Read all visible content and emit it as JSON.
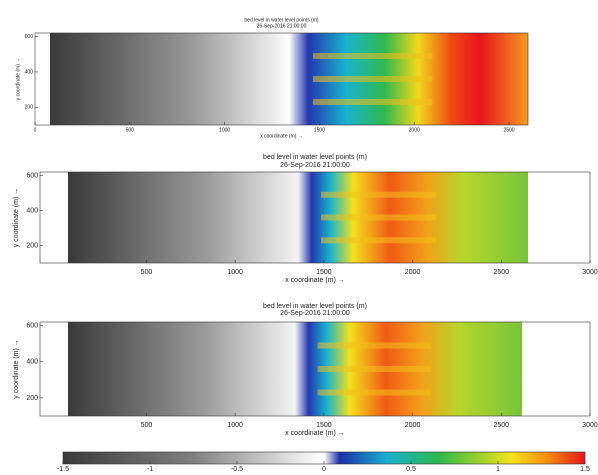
{
  "chart_data": [
    {
      "type": "heatmap",
      "title": "bed level in water level points (m)",
      "subtitle": "26-Sep-2016 21:00:00",
      "xlabel": "x coordinate (m) →",
      "ylabel": "y coordinate (m) →",
      "xlim": [
        0,
        2600
      ],
      "ylim": [
        100,
        620
      ],
      "xticks": [
        0,
        500,
        1000,
        1500,
        2000,
        2500
      ],
      "yticks": [
        200,
        400,
        600
      ]
    },
    {
      "type": "heatmap",
      "title": "bed level in water level points (m)",
      "subtitle": "26-Sep-2016 21:00:00",
      "xlabel": "x coordinate (m) →",
      "ylabel": "y coordinate (m) →",
      "xlim": [
        -100,
        3000
      ],
      "ylim": [
        100,
        620
      ],
      "xticks": [
        500,
        1000,
        1500,
        2000,
        2500,
        3000
      ],
      "yticks": [
        200,
        400,
        600
      ]
    },
    {
      "type": "heatmap",
      "title": "bed level in water level points (m)",
      "subtitle": "26-Sep-2016 21:00:00",
      "xlabel": "x coordinate (m) →",
      "ylabel": "y coordinate (m) →",
      "xlim": [
        -100,
        3000
      ],
      "ylim": [
        100,
        620
      ],
      "xticks": [
        500,
        1000,
        1500,
        2000,
        2500,
        3000
      ],
      "yticks": [
        200,
        400,
        600
      ]
    },
    {
      "type": "colorbar",
      "xlim": [
        -1.5,
        1.5
      ],
      "xticks": [
        -1.5,
        -1,
        -0.5,
        0,
        0.5,
        1,
        1.5
      ]
    }
  ]
}
